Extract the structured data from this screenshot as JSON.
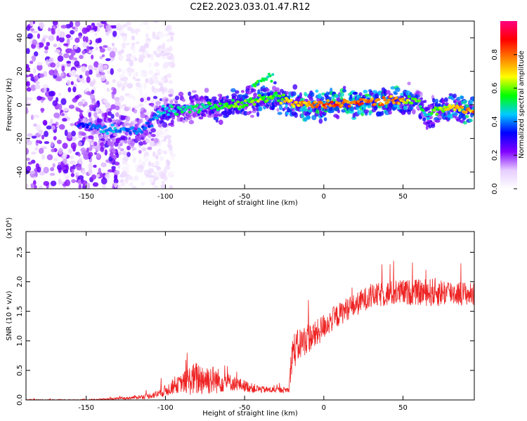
{
  "title": "C2E2.2023.033.01.47.R12",
  "chart_data": [
    {
      "type": "heatmap",
      "name": "spectrogram",
      "xlabel": "Height of straight line (km)",
      "ylabel": "Frequency (Hz)",
      "xlim": [
        -188,
        95
      ],
      "ylim": [
        -50,
        50
      ],
      "xticks": [
        -150,
        -100,
        -50,
        0,
        50
      ],
      "yticks": [
        -40,
        -20,
        0,
        20,
        40
      ],
      "colorbar": {
        "label": "Normalized spectral amplitude",
        "range": [
          0.0,
          1.0
        ],
        "ticks": [
          0.0,
          0.2,
          0.4,
          0.6,
          0.8
        ],
        "tick_labels": [
          "0.0",
          "0.2",
          "0.4",
          "0.6",
          "0.8"
        ],
        "colors": [
          "#ffffff",
          "#e6ccff",
          "#8000ff",
          "#0000ff",
          "#00ccff",
          "#00ff00",
          "#ffff00",
          "#ff8000",
          "#ff0000",
          "#ff0080"
        ]
      },
      "ridge": {
        "x": [
          -150,
          -140,
          -130,
          -120,
          -110,
          -105,
          -100,
          -90,
          -80,
          -70,
          -60,
          -50,
          -45,
          -40,
          -35,
          -30,
          -25,
          -20,
          -10,
          0,
          10,
          20,
          30,
          40,
          50,
          55,
          60,
          63,
          66,
          70,
          80,
          90,
          95
        ],
        "freq": [
          -12,
          -14,
          -15,
          -15,
          -13,
          -5,
          -3,
          -3,
          -2,
          -1,
          0,
          0,
          2,
          3,
          4,
          5,
          3,
          1,
          0,
          0,
          1,
          1,
          2,
          2,
          3,
          2,
          3,
          -6,
          -7,
          -3,
          -2,
          -3,
          -2
        ],
        "amplitude": [
          0.35,
          0.45,
          0.45,
          0.4,
          0.4,
          0.45,
          0.5,
          0.5,
          0.55,
          0.55,
          0.6,
          0.6,
          0.6,
          0.65,
          0.6,
          0.6,
          0.7,
          0.75,
          0.8,
          0.85,
          0.85,
          0.85,
          0.85,
          0.8,
          0.8,
          0.6,
          0.6,
          0.5,
          0.5,
          0.6,
          0.75,
          0.8,
          0.8
        ]
      },
      "noise_region_x": [
        -188,
        -120
      ]
    },
    {
      "type": "line",
      "name": "snr",
      "xlabel": "Height of straight line (km)",
      "ylabel": "SNR (10 * v/v)",
      "y_multiplier": "(x10⁴)",
      "xlim": [
        -188,
        95
      ],
      "ylim": [
        0.0,
        2.85
      ],
      "xticks": [
        -150,
        -100,
        -50,
        0,
        50
      ],
      "yticks": [
        0.0,
        0.5,
        1.0,
        1.5,
        2.0,
        2.5
      ],
      "ytick_labels": [
        "0.0",
        "0.5",
        "1.0",
        "1.5",
        "2.0",
        "2.5"
      ],
      "color": "#ee2222",
      "envelope": {
        "x": [
          -188,
          -150,
          -125,
          -112,
          -105,
          -100,
          -95,
          -90,
          -85,
          -80,
          -75,
          -70,
          -65,
          -60,
          -55,
          -50,
          -45,
          -40,
          -35,
          -30,
          -25,
          -22,
          -20,
          -18,
          -15,
          -10,
          -5,
          0,
          5,
          10,
          15,
          20,
          25,
          30,
          40,
          50,
          60,
          70,
          80,
          90,
          95
        ],
        "mean": [
          0.0,
          0.0,
          0.03,
          0.06,
          0.1,
          0.16,
          0.22,
          0.28,
          0.33,
          0.36,
          0.36,
          0.34,
          0.32,
          0.3,
          0.27,
          0.24,
          0.2,
          0.18,
          0.17,
          0.17,
          0.17,
          0.17,
          0.82,
          0.85,
          0.95,
          1.05,
          1.1,
          1.25,
          1.35,
          1.45,
          1.55,
          1.6,
          1.7,
          1.75,
          1.8,
          1.82,
          1.82,
          1.82,
          1.82,
          1.8,
          1.78
        ],
        "noise": [
          0.01,
          0.01,
          0.02,
          0.04,
          0.07,
          0.1,
          0.12,
          0.15,
          0.25,
          0.3,
          0.28,
          0.25,
          0.2,
          0.15,
          0.12,
          0.1,
          0.08,
          0.06,
          0.06,
          0.05,
          0.05,
          0.05,
          0.35,
          0.3,
          0.28,
          0.26,
          0.24,
          0.22,
          0.2,
          0.2,
          0.2,
          0.2,
          0.2,
          0.2,
          0.22,
          0.22,
          0.22,
          0.25,
          0.22,
          0.2,
          0.2
        ]
      }
    }
  ]
}
